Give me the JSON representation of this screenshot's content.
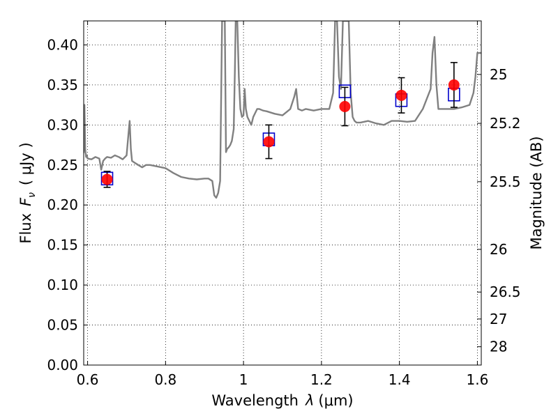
{
  "chart_data": {
    "type": "scatter",
    "xlabel_prefix": "Wavelength",
    "xlabel_symbol": "λ",
    "xlabel_unit": "(μm)",
    "ylabel_prefix": "Flux",
    "ylabel_symbol": "F",
    "ylabel_subscript": "ν",
    "ylabel_unit": "( μJy )",
    "y2label": "Magnitude (AB)",
    "xlim": [
      0.59,
      1.61
    ],
    "ylim": [
      0.0,
      0.43
    ],
    "grid": true,
    "x_ticks": [
      0.6,
      0.8,
      1.0,
      1.2,
      1.4,
      1.6
    ],
    "x_tick_labels": [
      "0.6",
      "0.8",
      "1",
      "1.2",
      "1.4",
      "1.6"
    ],
    "y_ticks": [
      0.0,
      0.05,
      0.1,
      0.15,
      0.2,
      0.25,
      0.3,
      0.35,
      0.4
    ],
    "y_tick_labels": [
      "0.00",
      "0.05",
      "0.10",
      "0.15",
      "0.20",
      "0.25",
      "0.30",
      "0.35",
      "0.40"
    ],
    "mag_ticks": [
      {
        "mag": 25,
        "label": "25"
      },
      {
        "mag": 25.2,
        "label": "25.2"
      },
      {
        "mag": 25.5,
        "label": "25.5"
      },
      {
        "mag": 26,
        "label": "26"
      },
      {
        "mag": 26.5,
        "label": "26.5"
      },
      {
        "mag": 27,
        "label": "27"
      },
      {
        "mag": 28,
        "label": "28"
      }
    ],
    "model_spectrum": {
      "color": "#808080",
      "x": [
        0.59,
        0.592,
        0.594,
        0.596,
        0.598,
        0.6,
        0.61,
        0.62,
        0.63,
        0.635,
        0.64,
        0.645,
        0.65,
        0.66,
        0.67,
        0.68,
        0.69,
        0.7,
        0.705,
        0.708,
        0.711,
        0.714,
        0.72,
        0.73,
        0.74,
        0.75,
        0.76,
        0.78,
        0.8,
        0.82,
        0.84,
        0.86,
        0.88,
        0.9,
        0.91,
        0.92,
        0.925,
        0.93,
        0.935,
        0.94,
        0.945,
        0.948,
        0.952,
        0.955,
        0.958,
        0.962,
        0.966,
        0.97,
        0.975,
        0.978,
        0.98,
        0.984,
        0.988,
        0.992,
        0.996,
        1.0,
        1.003,
        1.006,
        1.01,
        1.015,
        1.02,
        1.025,
        1.03,
        1.035,
        1.04,
        1.05,
        1.06,
        1.08,
        1.1,
        1.12,
        1.13,
        1.135,
        1.14,
        1.15,
        1.16,
        1.18,
        1.2,
        1.22,
        1.23,
        1.235,
        1.24,
        1.245,
        1.25,
        1.255,
        1.26,
        1.27,
        1.275,
        1.28,
        1.285,
        1.29,
        1.3,
        1.32,
        1.34,
        1.36,
        1.38,
        1.4,
        1.42,
        1.44,
        1.46,
        1.48,
        1.485,
        1.49,
        1.495,
        1.5,
        1.52,
        1.54,
        1.56,
        1.58,
        1.59,
        1.595,
        1.6,
        1.61
      ],
      "y": [
        0.265,
        0.325,
        0.27,
        0.26,
        0.262,
        0.258,
        0.257,
        0.26,
        0.258,
        0.244,
        0.255,
        0.258,
        0.26,
        0.259,
        0.262,
        0.26,
        0.257,
        0.262,
        0.29,
        0.305,
        0.27,
        0.255,
        0.253,
        0.25,
        0.247,
        0.25,
        0.25,
        0.248,
        0.246,
        0.24,
        0.235,
        0.233,
        0.232,
        0.233,
        0.233,
        0.23,
        0.212,
        0.209,
        0.215,
        0.23,
        0.43,
        0.43,
        0.43,
        0.266,
        0.27,
        0.272,
        0.275,
        0.28,
        0.295,
        0.37,
        0.43,
        0.43,
        0.36,
        0.32,
        0.31,
        0.312,
        0.345,
        0.32,
        0.31,
        0.305,
        0.3,
        0.31,
        0.315,
        0.32,
        0.32,
        0.318,
        0.317,
        0.314,
        0.312,
        0.32,
        0.335,
        0.345,
        0.32,
        0.318,
        0.32,
        0.318,
        0.32,
        0.32,
        0.34,
        0.43,
        0.43,
        0.36,
        0.345,
        0.43,
        0.43,
        0.43,
        0.34,
        0.31,
        0.305,
        0.303,
        0.303,
        0.305,
        0.302,
        0.3,
        0.305,
        0.305,
        0.304,
        0.305,
        0.32,
        0.345,
        0.39,
        0.41,
        0.35,
        0.32,
        0.32,
        0.32,
        0.322,
        0.325,
        0.34,
        0.36,
        0.39,
        0.39
      ]
    },
    "observed": {
      "color": "#ff0000",
      "points": [
        {
          "x": 0.65,
          "y": 0.232,
          "err": 0.01
        },
        {
          "x": 1.065,
          "y": 0.279,
          "err": 0.021
        },
        {
          "x": 1.26,
          "y": 0.323,
          "err": 0.024
        },
        {
          "x": 1.405,
          "y": 0.337,
          "err": 0.022
        },
        {
          "x": 1.54,
          "y": 0.35,
          "err": 0.028
        }
      ]
    },
    "model_photometry": {
      "color": "#0000cc",
      "points": [
        {
          "x": 0.65,
          "y": 0.233
        },
        {
          "x": 1.065,
          "y": 0.282
        },
        {
          "x": 1.26,
          "y": 0.342
        },
        {
          "x": 1.405,
          "y": 0.331
        },
        {
          "x": 1.54,
          "y": 0.338
        }
      ]
    }
  }
}
